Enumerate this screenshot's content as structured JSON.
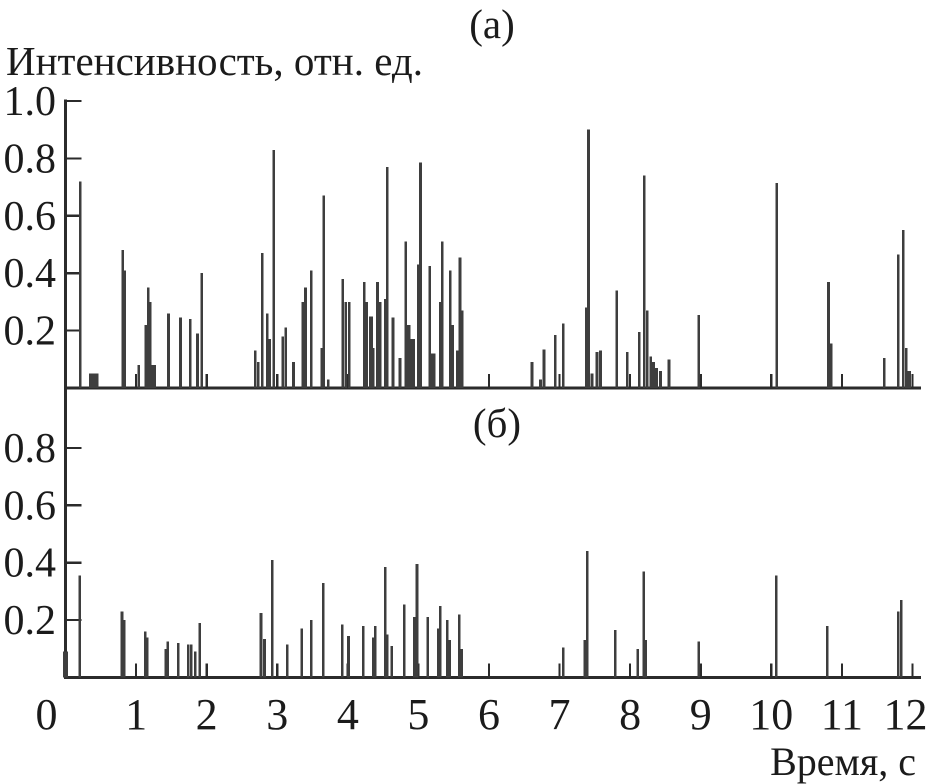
{
  "figure": {
    "panel_a_label": "(а)",
    "panel_b_label": "(б)",
    "y_axis_label": "Интенсивность, отн. ед.",
    "x_axis_label": "Время, с"
  },
  "colors": {
    "spike": "#3e3e3e",
    "axis": "#2b2b2b",
    "text": "#1b1b1b",
    "background": "#ffffff"
  },
  "chart_data": [
    {
      "type": "stem",
      "panel": "(а)",
      "title": "(а)",
      "ylabel": "Интенсивность, отн. ед.",
      "xlabel": "Время, с",
      "xlim": [
        0,
        12.1
      ],
      "ylim": [
        0,
        1.0
      ],
      "xticks": [
        0,
        1,
        2,
        3,
        4,
        5,
        6,
        7,
        8,
        9,
        10,
        11,
        12
      ],
      "yticks": [
        0.2,
        0.4,
        0.6,
        0.8,
        1.0
      ],
      "ytick_labels": [
        "0.2",
        "0.4",
        "0.6",
        "0.8",
        "1.0"
      ],
      "grid": false,
      "legend": null,
      "spike_format": "[time_s, intensity_rel, optional_width_s]",
      "spikes": [
        [
          0.21,
          0.72
        ],
        [
          0.4,
          0.05,
          0.14
        ],
        [
          0.81,
          0.48
        ],
        [
          0.84,
          0.41
        ],
        [
          1.04,
          0.08
        ],
        [
          1.14,
          0.22
        ],
        [
          1.17,
          0.35
        ],
        [
          1.2,
          0.3
        ],
        [
          1.25,
          0.08,
          0.06
        ],
        [
          1.46,
          0.26
        ],
        [
          1.63,
          0.245
        ],
        [
          1.77,
          0.24
        ],
        [
          1.87,
          0.19
        ],
        [
          1.93,
          0.4
        ],
        [
          2.69,
          0.13
        ],
        [
          2.73,
          0.09
        ],
        [
          2.79,
          0.47
        ],
        [
          2.86,
          0.26
        ],
        [
          2.89,
          0.17
        ],
        [
          2.95,
          0.83
        ],
        [
          3.08,
          0.18
        ],
        [
          3.12,
          0.21
        ],
        [
          3.23,
          0.09
        ],
        [
          3.36,
          0.3
        ],
        [
          3.4,
          0.35
        ],
        [
          3.48,
          0.41
        ],
        [
          3.63,
          0.14
        ],
        [
          3.66,
          0.67
        ],
        [
          3.72,
          0.03
        ],
        [
          3.93,
          0.38
        ],
        [
          3.97,
          0.3
        ],
        [
          4.02,
          0.3
        ],
        [
          4.23,
          0.37
        ],
        [
          4.27,
          0.3
        ],
        [
          4.33,
          0.25,
          0.06
        ],
        [
          4.36,
          0.14
        ],
        [
          4.42,
          0.37
        ],
        [
          4.46,
          0.3
        ],
        [
          4.53,
          0.31
        ],
        [
          4.56,
          0.77
        ],
        [
          4.64,
          0.245
        ],
        [
          4.74,
          0.105
        ],
        [
          4.82,
          0.51
        ],
        [
          4.85,
          0.22,
          0.08
        ],
        [
          4.92,
          0.17,
          0.06
        ],
        [
          5.0,
          0.43
        ],
        [
          5.03,
          0.785
        ],
        [
          5.16,
          0.425
        ],
        [
          5.21,
          0.12,
          0.07
        ],
        [
          5.31,
          0.3
        ],
        [
          5.34,
          0.51
        ],
        [
          5.45,
          0.41
        ],
        [
          5.47,
          0.22,
          0.07
        ],
        [
          5.56,
          0.13,
          0.05
        ],
        [
          5.59,
          0.455
        ],
        [
          5.62,
          0.27
        ],
        [
          6.61,
          0.09
        ],
        [
          6.73,
          0.03
        ],
        [
          6.78,
          0.135
        ],
        [
          6.94,
          0.185
        ],
        [
          7.05,
          0.225
        ],
        [
          7.38,
          0.28
        ],
        [
          7.41,
          0.9
        ],
        [
          7.46,
          0.05
        ],
        [
          7.53,
          0.125
        ],
        [
          7.58,
          0.13
        ],
        [
          7.81,
          0.34
        ],
        [
          7.96,
          0.125
        ],
        [
          8.13,
          0.195
        ],
        [
          8.2,
          0.74
        ],
        [
          8.24,
          0.27
        ],
        [
          8.29,
          0.11
        ],
        [
          8.33,
          0.09,
          0.05
        ],
        [
          8.37,
          0.07,
          0.05
        ],
        [
          8.43,
          0.06
        ],
        [
          8.55,
          0.1
        ],
        [
          8.97,
          0.255
        ],
        [
          10.08,
          0.715
        ],
        [
          10.81,
          0.37
        ],
        [
          10.85,
          0.155
        ],
        [
          11.6,
          0.105
        ],
        [
          11.8,
          0.465
        ],
        [
          11.87,
          0.55
        ],
        [
          11.91,
          0.14
        ],
        [
          11.94,
          0.06,
          0.08
        ]
      ]
    },
    {
      "type": "stem",
      "panel": "(б)",
      "title": "(б)",
      "ylabel": "Интенсивность, отн. ед.",
      "xlabel": "Время, с",
      "xlim": [
        0,
        12.1
      ],
      "ylim": [
        0,
        1.0
      ],
      "xticks": [
        0,
        1,
        2,
        3,
        4,
        5,
        6,
        7,
        8,
        9,
        10,
        11,
        12
      ],
      "yticks": [
        0.2,
        0.4,
        0.6,
        0.8
      ],
      "ytick_labels": [
        "0.2",
        "0.4",
        "0.6",
        "0.8"
      ],
      "grid": false,
      "legend": null,
      "spike_format": "[time_s, intensity_rel, optional_width_s]",
      "spikes": [
        [
          0.0,
          0.09,
          0.07
        ],
        [
          0.2,
          0.355
        ],
        [
          0.8,
          0.23
        ],
        [
          0.83,
          0.2
        ],
        [
          1.13,
          0.16
        ],
        [
          1.16,
          0.14
        ],
        [
          1.42,
          0.1
        ],
        [
          1.45,
          0.125
        ],
        [
          1.6,
          0.12
        ],
        [
          1.74,
          0.115
        ],
        [
          1.78,
          0.115
        ],
        [
          1.84,
          0.09
        ],
        [
          1.9,
          0.19
        ],
        [
          2.77,
          0.225
        ],
        [
          2.82,
          0.135
        ],
        [
          2.93,
          0.41
        ],
        [
          3.14,
          0.115
        ],
        [
          3.35,
          0.17
        ],
        [
          3.48,
          0.2
        ],
        [
          3.65,
          0.33
        ],
        [
          3.92,
          0.185
        ],
        [
          4.01,
          0.145
        ],
        [
          4.22,
          0.18
        ],
        [
          4.36,
          0.14
        ],
        [
          4.39,
          0.18
        ],
        [
          4.53,
          0.385
        ],
        [
          4.56,
          0.15
        ],
        [
          4.62,
          0.11
        ],
        [
          4.8,
          0.255
        ],
        [
          4.94,
          0.21
        ],
        [
          4.98,
          0.395
        ],
        [
          5.13,
          0.21
        ],
        [
          5.28,
          0.17
        ],
        [
          5.31,
          0.25
        ],
        [
          5.41,
          0.2
        ],
        [
          5.44,
          0.13,
          0.05
        ],
        [
          5.58,
          0.22
        ],
        [
          5.61,
          0.1,
          0.05
        ],
        [
          7.05,
          0.105
        ],
        [
          7.36,
          0.13
        ],
        [
          7.39,
          0.44
        ],
        [
          7.79,
          0.165
        ],
        [
          8.11,
          0.1
        ],
        [
          8.19,
          0.37
        ],
        [
          8.22,
          0.13
        ],
        [
          8.97,
          0.125
        ],
        [
          10.07,
          0.355
        ],
        [
          10.79,
          0.18
        ],
        [
          11.8,
          0.23
        ],
        [
          11.84,
          0.27
        ]
      ]
    }
  ]
}
